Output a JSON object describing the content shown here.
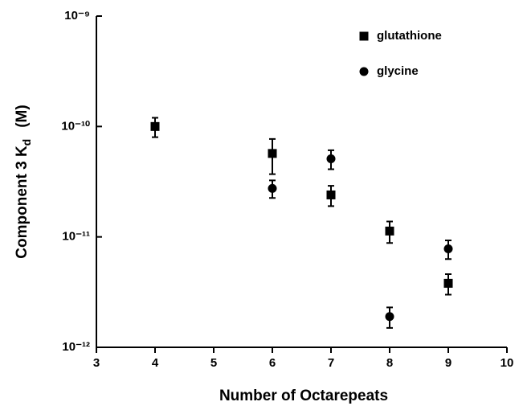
{
  "chart_data": {
    "type": "scatter",
    "x_label": "Number of Octarepeats",
    "y_label": "Component 3  K",
    "y_label_subscript": "d",
    "y_label_unit": "(M)",
    "y_log": true,
    "xlim": [
      3,
      10
    ],
    "xticks": [
      3,
      4,
      5,
      6,
      7,
      8,
      9,
      10
    ],
    "ylim": [
      1e-12,
      1e-09
    ],
    "yticks": [
      {
        "value": 1e-12,
        "label": "10⁻¹²"
      },
      {
        "value": 1e-11,
        "label": "10⁻¹¹"
      },
      {
        "value": 1e-10,
        "label": "10⁻¹⁰"
      },
      {
        "value": 1e-09,
        "label": "10⁻⁹"
      }
    ],
    "legend_position": "upper right",
    "series": [
      {
        "name": "glutathione",
        "marker": "square",
        "color": "#000000",
        "x": [
          4,
          6,
          7,
          8,
          9
        ],
        "values": [
          1e-10,
          5.7e-11,
          2.4e-11,
          1.13e-11,
          3.8e-12
        ],
        "errors": [
          2e-11,
          2e-11,
          5e-12,
          2.5e-12,
          8e-13
        ]
      },
      {
        "name": "glycine",
        "marker": "circle",
        "color": "#000000",
        "x": [
          6,
          7,
          8,
          9
        ],
        "values": [
          2.75e-11,
          5.1e-11,
          1.9e-12,
          7.8e-12
        ],
        "errors": [
          5e-12,
          1e-11,
          4e-13,
          1.5e-12
        ]
      }
    ]
  }
}
